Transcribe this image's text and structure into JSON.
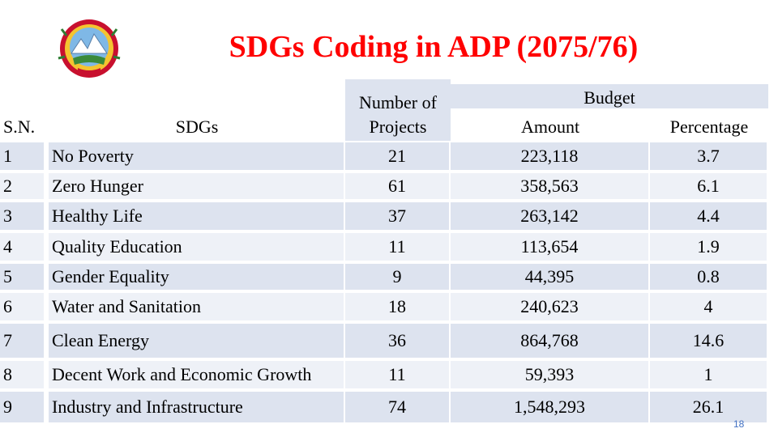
{
  "title": "SDGs Coding in ADP (2075/76)",
  "header": {
    "sn": "S.N.",
    "sdgs": "SDGs",
    "num_projects": "Number of Projects",
    "budget": "Budget",
    "amount": "Amount",
    "percentage": "Percentage"
  },
  "rows": [
    {
      "sn": "1",
      "sdg": "No Poverty",
      "projects": "21",
      "amount": "223,118",
      "pct": "3.7"
    },
    {
      "sn": "2",
      "sdg": "Zero Hunger",
      "projects": "61",
      "amount": "358,563",
      "pct": "6.1"
    },
    {
      "sn": "3",
      "sdg": "Healthy Life",
      "projects": "37",
      "amount": "263,142",
      "pct": "4.4"
    },
    {
      "sn": "4",
      "sdg": "Quality Education",
      "projects": "11",
      "amount": "113,654",
      "pct": "1.9"
    },
    {
      "sn": "5",
      "sdg": "Gender Equality",
      "projects": "9",
      "amount": "44,395",
      "pct": "0.8"
    },
    {
      "sn": "6",
      "sdg": "Water and Sanitation",
      "projects": "18",
      "amount": "240,623",
      "pct": "4"
    },
    {
      "sn": "7",
      "sdg": "Clean Energy",
      "projects": "36",
      "amount": "864,768",
      "pct": "14.6"
    },
    {
      "sn": "8",
      "sdg": "Decent Work and Economic Growth",
      "projects": "11",
      "amount": "59,393",
      "pct": "1"
    },
    {
      "sn": "9",
      "sdg": "Industry and Infrastructure",
      "projects": "74",
      "amount": "1,548,293",
      "pct": "26.1"
    }
  ],
  "page_number": "18",
  "colors": {
    "title": "#ff0000",
    "row_band": "#dde3ef",
    "page_number": "#4472c4"
  },
  "icons": {
    "emblem": "nepal-emblem-icon"
  }
}
